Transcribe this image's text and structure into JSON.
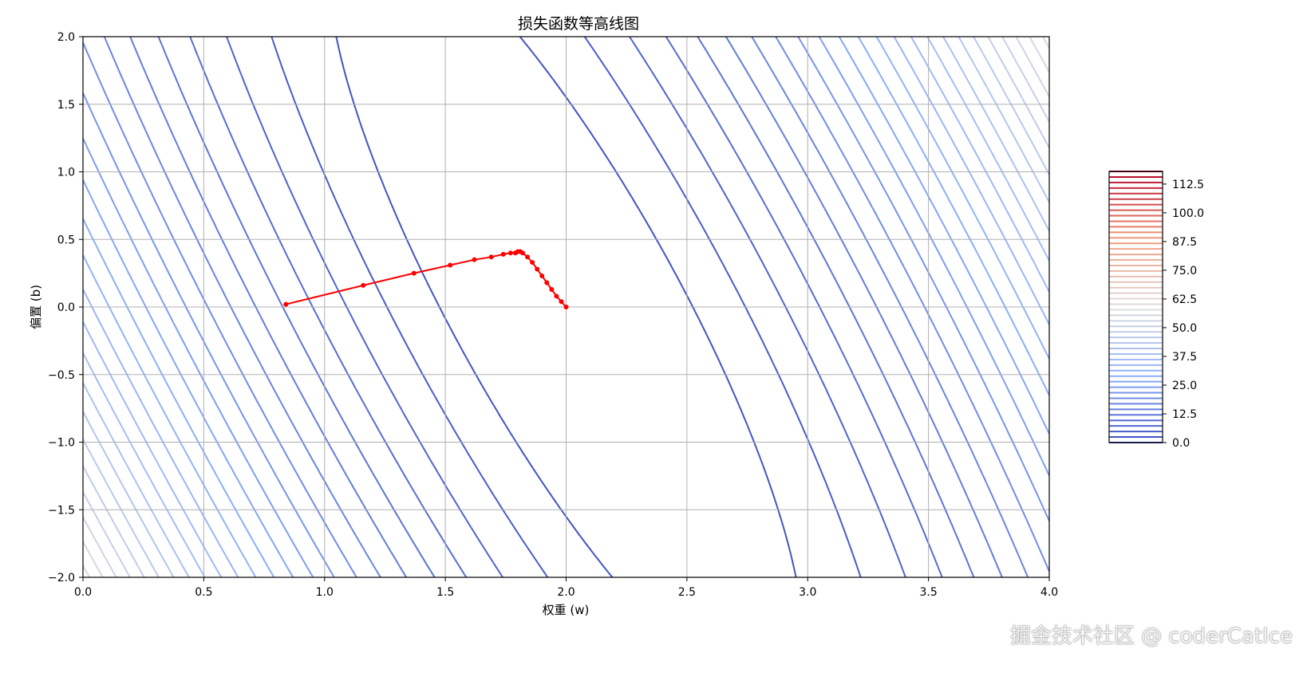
{
  "chart_data": {
    "type": "contour",
    "title": "损失函数等高线图",
    "xlabel": "权重 (w)",
    "ylabel": "偏置 (b)",
    "xlim": [
      0.0,
      4.0
    ],
    "ylim": [
      -2.0,
      2.0
    ],
    "x_ticks": [
      "0.0",
      "0.5",
      "1.0",
      "1.5",
      "2.0",
      "2.5",
      "3.0",
      "3.5",
      "4.0"
    ],
    "y_ticks": [
      "−2.0",
      "−1.5",
      "−1.0",
      "−0.5",
      "0.0",
      "0.5",
      "1.0",
      "1.5",
      "2.0"
    ],
    "grid": true,
    "colormap": "coolwarm",
    "colorbar": {
      "range": [
        0.0,
        118.0
      ],
      "ticks": [
        "0.0",
        "12.5",
        "25.0",
        "37.5",
        "50.0",
        "62.5",
        "75.0",
        "87.5",
        "100.0",
        "112.5"
      ],
      "placement": "right"
    },
    "contour_levels": {
      "min": 0.0,
      "max": 118.0,
      "count": 50
    },
    "optimization_path": {
      "color": "#ff0000",
      "w": [
        0.84,
        1.16,
        1.37,
        1.52,
        1.62,
        1.69,
        1.74,
        1.77,
        1.79,
        1.8,
        1.81,
        1.82,
        1.84,
        1.86,
        1.88,
        1.9,
        1.92,
        1.94,
        1.96,
        1.98,
        2.0
      ],
      "b": [
        0.02,
        0.16,
        0.25,
        0.31,
        0.35,
        0.37,
        0.39,
        0.4,
        0.4,
        0.41,
        0.41,
        0.4,
        0.37,
        0.33,
        0.28,
        0.23,
        0.18,
        0.13,
        0.08,
        0.04,
        0.0
      ]
    }
  },
  "watermark": "掘金技术社区 @ coderCatIce"
}
